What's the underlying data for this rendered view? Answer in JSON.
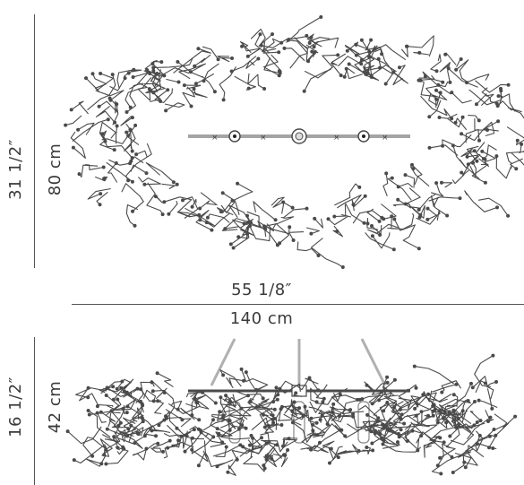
{
  "top_view": {
    "height_in": "31 1/2″",
    "height_cm": "80 cm"
  },
  "width": {
    "in": "55 1/8″",
    "cm": "140 cm"
  },
  "side_view": {
    "height_in": "16 1/2″",
    "height_cm": "42 cm"
  },
  "colors": {
    "wire": "#4a4a4a",
    "dim_line": "#555555",
    "suspension": "#b0b0b0"
  }
}
